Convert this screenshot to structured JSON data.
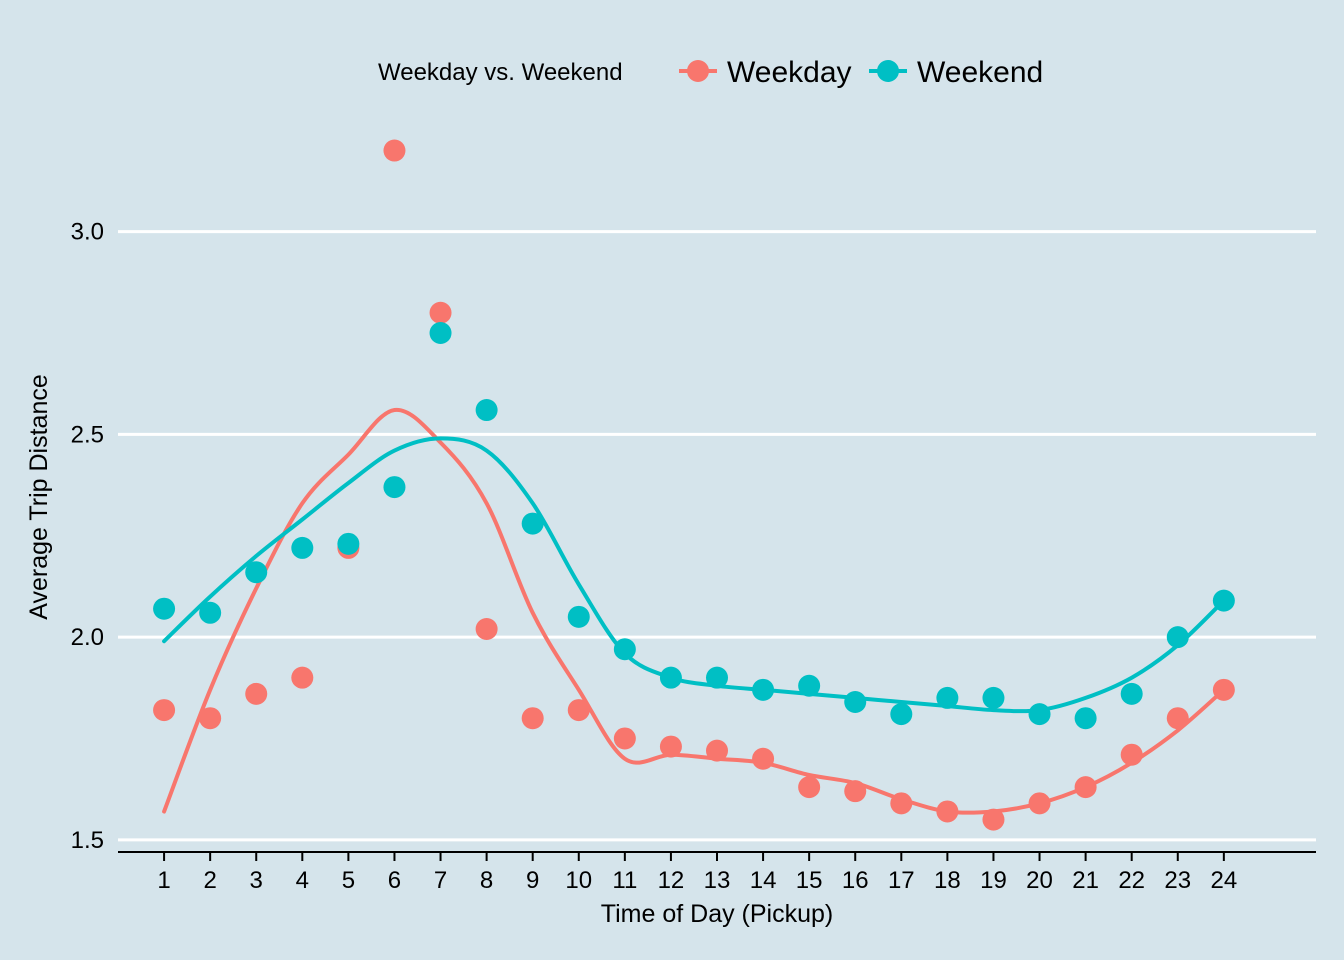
{
  "chart_data": {
    "type": "scatter",
    "title": "",
    "xlabel": "Time of Day (Pickup)",
    "ylabel": "Average Trip Distance",
    "x": [
      1,
      2,
      3,
      4,
      5,
      6,
      7,
      8,
      9,
      10,
      11,
      12,
      13,
      14,
      15,
      16,
      17,
      18,
      19,
      20,
      21,
      22,
      23,
      24
    ],
    "x_ticks": [
      "1",
      "2",
      "3",
      "4",
      "5",
      "6",
      "7",
      "8",
      "9",
      "10",
      "11",
      "12",
      "13",
      "14",
      "15",
      "16",
      "17",
      "18",
      "19",
      "20",
      "21",
      "22",
      "23",
      "24"
    ],
    "y_ticks": [
      "1.5",
      "2.0",
      "2.5",
      "3.0"
    ],
    "xlim": [
      0,
      26
    ],
    "ylim": [
      1.47,
      3.3
    ],
    "grid": "horizontal major lines",
    "legend": {
      "title": "Weekday vs. Weekend",
      "placement": "top"
    },
    "series": [
      {
        "name": "Weekday",
        "color": "#f8766d",
        "values": [
          1.82,
          1.8,
          1.86,
          1.9,
          2.22,
          3.2,
          2.8,
          2.02,
          1.8,
          1.82,
          1.75,
          1.73,
          1.72,
          1.7,
          1.63,
          1.62,
          1.59,
          1.57,
          1.55,
          1.59,
          1.63,
          1.71,
          1.8,
          1.87
        ],
        "smooth": [
          1.57,
          1.87,
          2.12,
          2.33,
          2.45,
          2.56,
          2.48,
          2.33,
          2.06,
          1.87,
          1.7,
          1.71,
          1.7,
          1.69,
          1.66,
          1.64,
          1.6,
          1.57,
          1.57,
          1.59,
          1.63,
          1.69,
          1.77,
          1.87
        ]
      },
      {
        "name": "Weekend",
        "color": "#00bfc4",
        "values": [
          2.07,
          2.06,
          2.16,
          2.22,
          2.23,
          2.37,
          2.75,
          2.56,
          2.28,
          2.05,
          1.97,
          1.9,
          1.9,
          1.87,
          1.88,
          1.84,
          1.81,
          1.85,
          1.85,
          1.81,
          1.8,
          1.86,
          2.0,
          2.09
        ],
        "smooth": [
          1.99,
          2.1,
          2.2,
          2.29,
          2.38,
          2.46,
          2.49,
          2.46,
          2.33,
          2.13,
          1.96,
          1.9,
          1.88,
          1.87,
          1.86,
          1.85,
          1.84,
          1.83,
          1.82,
          1.82,
          1.85,
          1.9,
          1.98,
          2.09
        ]
      }
    ]
  }
}
